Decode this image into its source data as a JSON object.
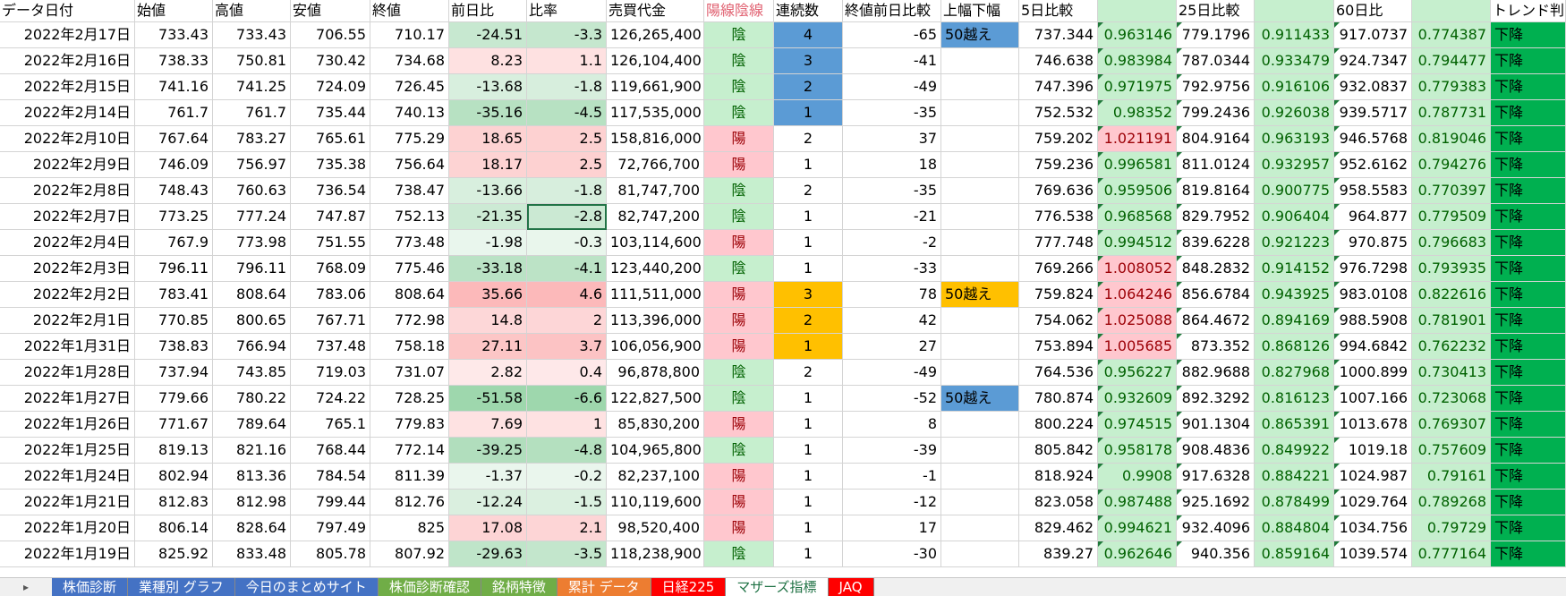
{
  "header": [
    "データ日付",
    "始値",
    "高値",
    "安値",
    "終値",
    "前日比",
    "比率",
    "売買代金",
    "陽線陰線",
    "連続数",
    "終値前日比較",
    "上幅下幅",
    "5日比較",
    null,
    "25日比較",
    null,
    "60日比",
    null,
    "トレンド判"
  ],
  "rows": [
    [
      "2022年2月17日",
      "733.43",
      "733.43",
      "706.55",
      "710.17",
      "-24.51",
      "-3.3",
      "126,265,400",
      "陰",
      "4",
      "-65",
      "50越え",
      "737.344",
      "0.963146",
      "779.1796",
      "0.911433",
      "917.0737",
      "0.774387",
      "下降"
    ],
    [
      "2022年2月16日",
      "738.33",
      "750.81",
      "730.42",
      "734.68",
      "8.23",
      "1.1",
      "126,104,400",
      "陰",
      "3",
      "-41",
      null,
      "746.638",
      "0.983984",
      "787.0344",
      "0.933479",
      "924.7347",
      "0.794477",
      "下降"
    ],
    [
      "2022年2月15日",
      "741.16",
      "741.25",
      "724.09",
      "726.45",
      "-13.68",
      "-1.8",
      "119,661,900",
      "陰",
      "2",
      "-49",
      null,
      "747.396",
      "0.971975",
      "792.9756",
      "0.916106",
      "932.0837",
      "0.779383",
      "下降"
    ],
    [
      "2022年2月14日",
      "761.7",
      "761.7",
      "735.44",
      "740.13",
      "-35.16",
      "-4.5",
      "117,535,000",
      "陰",
      "1",
      "-35",
      null,
      "752.532",
      "0.98352",
      "799.2436",
      "0.926038",
      "939.5717",
      "0.787731",
      "下降"
    ],
    [
      "2022年2月10日",
      "767.64",
      "783.27",
      "765.61",
      "775.29",
      "18.65",
      "2.5",
      "158,816,000",
      "陽",
      "2",
      "37",
      null,
      "759.202",
      "1.021191",
      "804.9164",
      "0.963193",
      "946.5768",
      "0.819046",
      "下降"
    ],
    [
      "2022年2月9日",
      "746.09",
      "756.97",
      "735.38",
      "756.64",
      "18.17",
      "2.5",
      "72,766,700",
      "陽",
      "1",
      "18",
      null,
      "759.236",
      "0.996581",
      "811.0124",
      "0.932957",
      "952.6162",
      "0.794276",
      "下降"
    ],
    [
      "2022年2月8日",
      "748.43",
      "760.63",
      "736.54",
      "738.47",
      "-13.66",
      "-1.8",
      "81,747,700",
      "陰",
      "2",
      "-35",
      null,
      "769.636",
      "0.959506",
      "819.8164",
      "0.900775",
      "958.5583",
      "0.770397",
      "下降"
    ],
    [
      "2022年2月7日",
      "773.25",
      "777.24",
      "747.87",
      "752.13",
      "-21.35",
      "-2.8",
      "82,747,200",
      "陰",
      "1",
      "-21",
      null,
      "776.538",
      "0.968568",
      "829.7952",
      "0.906404",
      "964.877",
      "0.779509",
      "下降"
    ],
    [
      "2022年2月4日",
      "767.9",
      "773.98",
      "751.55",
      "773.48",
      "-1.98",
      "-0.3",
      "103,114,600",
      "陽",
      "1",
      "-2",
      null,
      "777.748",
      "0.994512",
      "839.6228",
      "0.921223",
      "970.875",
      "0.796683",
      "下降"
    ],
    [
      "2022年2月3日",
      "796.11",
      "796.11",
      "768.09",
      "775.46",
      "-33.18",
      "-4.1",
      "123,440,200",
      "陰",
      "1",
      "-33",
      null,
      "769.266",
      "1.008052",
      "848.2832",
      "0.914152",
      "976.7298",
      "0.793935",
      "下降"
    ],
    [
      "2022年2月2日",
      "783.41",
      "808.64",
      "783.06",
      "808.64",
      "35.66",
      "4.6",
      "111,511,000",
      "陽",
      "3",
      "78",
      "50越え",
      "759.824",
      "1.064246",
      "856.6784",
      "0.943925",
      "983.0108",
      "0.822616",
      "下降"
    ],
    [
      "2022年2月1日",
      "770.85",
      "800.65",
      "767.71",
      "772.98",
      "14.8",
      "2",
      "113,396,000",
      "陽",
      "2",
      "42",
      null,
      "754.062",
      "1.025088",
      "864.4672",
      "0.894169",
      "988.5908",
      "0.781901",
      "下降"
    ],
    [
      "2022年1月31日",
      "738.83",
      "766.94",
      "737.48",
      "758.18",
      "27.11",
      "3.7",
      "106,056,900",
      "陽",
      "1",
      "27",
      null,
      "753.894",
      "1.005685",
      "873.352",
      "0.868126",
      "994.6842",
      "0.762232",
      "下降"
    ],
    [
      "2022年1月28日",
      "737.94",
      "743.85",
      "719.03",
      "731.07",
      "2.82",
      "0.4",
      "96,878,800",
      "陰",
      "2",
      "-49",
      null,
      "764.536",
      "0.956227",
      "882.9688",
      "0.827968",
      "1000.899",
      "0.730413",
      "下降"
    ],
    [
      "2022年1月27日",
      "779.66",
      "780.22",
      "724.22",
      "728.25",
      "-51.58",
      "-6.6",
      "122,827,500",
      "陰",
      "1",
      "-52",
      "50越え",
      "780.874",
      "0.932609",
      "892.3292",
      "0.816123",
      "1007.166",
      "0.723068",
      "下降"
    ],
    [
      "2022年1月26日",
      "771.67",
      "789.64",
      "765.1",
      "779.83",
      "7.69",
      "1",
      "85,830,200",
      "陽",
      "1",
      "8",
      null,
      "800.224",
      "0.974515",
      "901.1304",
      "0.865391",
      "1013.678",
      "0.769307",
      "下降"
    ],
    [
      "2022年1月25日",
      "819.13",
      "821.16",
      "768.44",
      "772.14",
      "-39.25",
      "-4.8",
      "104,965,800",
      "陰",
      "1",
      "-39",
      null,
      "805.842",
      "0.958178",
      "908.4836",
      "0.849922",
      "1019.18",
      "0.757609",
      "下降"
    ],
    [
      "2022年1月24日",
      "802.94",
      "813.36",
      "784.54",
      "811.39",
      "-1.37",
      "-0.2",
      "82,237,100",
      "陽",
      "1",
      "-1",
      null,
      "818.924",
      "0.9908",
      "917.6328",
      "0.884221",
      "1024.987",
      "0.79161",
      "下降"
    ],
    [
      "2022年1月21日",
      "812.83",
      "812.98",
      "799.44",
      "812.76",
      "-12.24",
      "-1.5",
      "110,119,600",
      "陽",
      "1",
      "-12",
      null,
      "823.058",
      "0.987488",
      "925.1692",
      "0.878499",
      "1029.764",
      "0.789268",
      "下降"
    ],
    [
      "2022年1月20日",
      "806.14",
      "828.64",
      "797.49",
      "825",
      "17.08",
      "2.1",
      "98,520,400",
      "陽",
      "1",
      "17",
      null,
      "829.462",
      "0.994621",
      "932.4096",
      "0.884804",
      "1034.756",
      "0.79729",
      "下降"
    ],
    [
      "2022年1月19日",
      "825.92",
      "833.48",
      "805.78",
      "807.92",
      "-29.63",
      "-3.5",
      "118,238,900",
      "陰",
      "1",
      "-30",
      null,
      "839.27",
      "0.962646",
      "940.356",
      "0.859164",
      "1039.574",
      "0.777164",
      "下降"
    ]
  ],
  "tabs": [
    "株価診断",
    "業種別 グラフ",
    "今日のまとめサイト",
    "株価診断確認",
    "銘柄特徴",
    "累計 データ",
    "日経225",
    "マザーズ指標",
    "JAQ"
  ]
}
